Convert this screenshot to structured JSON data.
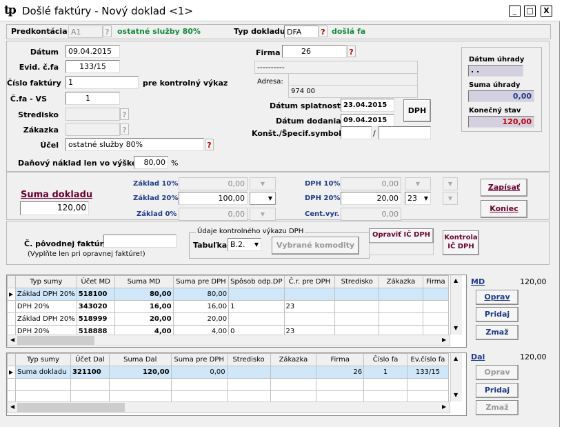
{
  "window": {
    "title": "Došlé faktúry - Nový doklad   <1>",
    "logo": "tp",
    "min": "_",
    "max": "□",
    "close": "X"
  },
  "top": {
    "predkontacia_label": "Predkontácia",
    "predkontacia_value": "A1",
    "predkontacia_desc": "ostatné služby 80%",
    "typ_label": "Typ dokladu",
    "typ_value": "DFA",
    "typ_desc": "došlá fa"
  },
  "form": {
    "datum_label": "Dátum",
    "datum": "09.04.2015",
    "evid_label": "Evid. č.fa",
    "evid": "133/15",
    "cislo_label": "Číslo faktúry",
    "cislo": "1",
    "kontrol_label": "pre kontrolný výkaz",
    "vs_label": "Č.fa - VS",
    "vs": "1",
    "stredisko_label": "Stredisko",
    "zakazka_label": "Zákazka",
    "ucel_label": "Účel",
    "ucel": "ostatné služby 80%",
    "danovy_label": "Daňový náklad len  vo výške",
    "danovy": "80,00",
    "pct": "%",
    "firma_label": "Firma",
    "firma": "26",
    "firma_name": "----------",
    "adresa_label": "Adresa:",
    "adresa_city": "974 00",
    "splatnost_label": "Dátum splatnosti",
    "splatnost": "23.04.2015",
    "dodania_label": "Dátum dodania",
    "dodania": "09.04.2015",
    "konst_label": "Konšt./Špecif.symbol",
    "slash": "/",
    "dph_btn": "DPH",
    "uhrada_label": "Dátum úhrady",
    "uhrada": " . .",
    "suma_uhrady_label": "Suma úhrady",
    "suma_uhrady": "0,00",
    "konecny_label": "Konečný stav",
    "konecny": "120,00"
  },
  "sums": {
    "suma_label": "Suma dokladu",
    "suma": "120,00",
    "z10_label": "Základ 10%",
    "z10": "0,00",
    "z20_label": "Základ 20%",
    "z20": "100,00",
    "z0_label": "Základ 0%",
    "z0": "0,00",
    "d10_label": "DPH 10%",
    "d10": "0,00",
    "d20_label": "DPH 20%",
    "d20": "20,00",
    "d20_code": "23",
    "cent_label": "Cent.vyr.",
    "cent": "0,00",
    "zapisat": "Zapísať",
    "koniec": "Koniec"
  },
  "orig": {
    "label": "Č. pôvodnej faktúry",
    "note": "(Vyplňte len pri opravnej faktúre!)",
    "group": "Údaje kontrolného výkazu DPH",
    "tabulka_label": "Tabuľka",
    "tabulka": "B.2.",
    "vybrane": "Vybrané komodity",
    "opravit": "Opraviť IČ DPH",
    "kontrola": "Kontrola IČ DPH"
  },
  "md": {
    "label": "MD",
    "total": "120,00",
    "columns": [
      "Typ sumy",
      "Účet MD",
      "Suma MD",
      "Suma pre DPH",
      "Spôsob odp.DP",
      "Č.r. pre DPH",
      "Stredisko",
      "Zákazka",
      "Firma"
    ],
    "rows": [
      [
        "Základ DPH 20%",
        "518100",
        "80,00",
        "80,00",
        "",
        "",
        "",
        "",
        ""
      ],
      [
        "DPH 20%",
        "343020",
        "16,00",
        "16,00",
        "1",
        "23",
        "",
        "",
        ""
      ],
      [
        "Základ DPH 20%",
        "518999",
        "20,00",
        "20,00",
        "",
        "",
        "",
        "",
        ""
      ],
      [
        "DPH 20%",
        "518888",
        "4,00",
        "4,00",
        "0",
        "23",
        "",
        "",
        ""
      ]
    ],
    "oprav": "Oprav",
    "pridaj": "Pridaj",
    "zmaz": "Zmaž"
  },
  "dal": {
    "label": "Dal",
    "total": "120,00",
    "columns": [
      "Typ sumy",
      "Účet Dal",
      "Suma Dal",
      "Suma pre DPH",
      "Stredisko",
      "Zákazka",
      "Firma",
      "Číslo fa",
      "Ev.číslo fa"
    ],
    "rows": [
      [
        "Suma dokladu",
        "321100",
        "120,00",
        "0,00",
        "",
        "",
        "26",
        "1",
        "133/15"
      ]
    ],
    "oprav": "Oprav",
    "pridaj": "Pridaj",
    "zmaz": "Zmaž"
  },
  "colors": {
    "maroon": "#6a0030",
    "blue": "#1f3a8a",
    "green": "#158a3a",
    "red": "#c00000",
    "selection": "#cfe7f8"
  }
}
